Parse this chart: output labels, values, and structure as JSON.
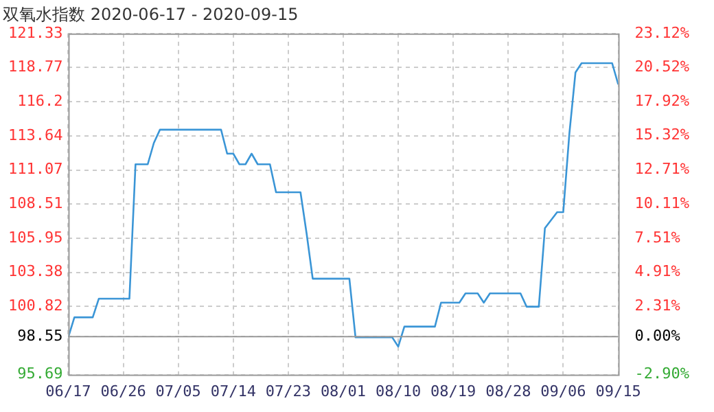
{
  "chart_data": {
    "type": "line",
    "title": "双氧水指数 2020-06-17 - 2020-09-15",
    "x": [
      "--06-17",
      "--06-18",
      "--06-21",
      "--06-22",
      "--06-27",
      "--06-28",
      "--06-30",
      "--07-01",
      "--07-02",
      "--07-12",
      "--07-13",
      "--07-14",
      "--07-15",
      "--07-16",
      "--07-17",
      "--07-18",
      "--07-20",
      "--07-21",
      "--07-25",
      "--07-26",
      "--07-27",
      "--08-02",
      "--08-03",
      "--08-09",
      "--08-10",
      "--08-11",
      "--08-16",
      "--08-17",
      "--08-20",
      "--08-21",
      "--08-23",
      "--08-24",
      "--08-25",
      "--08-30",
      "--08-31",
      "--09-02",
      "--09-03",
      "--09-05",
      "--09-06",
      "--09-07",
      "--09-08",
      "--09-09",
      "--09-14",
      "--09-15"
    ],
    "series": [
      {
        "color": "#3a95d6",
        "values": [
          98.5,
          100.0,
          100.0,
          101.4,
          101.4,
          111.5,
          111.5,
          113.1,
          114.1,
          114.1,
          112.3,
          112.3,
          111.5,
          111.5,
          112.3,
          111.5,
          111.5,
          109.4,
          109.4,
          106.3,
          102.9,
          102.9,
          98.5,
          98.5,
          97.8,
          99.3,
          99.3,
          101.1,
          101.1,
          101.8,
          101.8,
          101.1,
          101.8,
          101.8,
          100.8,
          100.8,
          106.7,
          107.9,
          107.9,
          113.8,
          118.4,
          119.1,
          119.1,
          117.5
        ]
      }
    ],
    "xlim": [
      "--06-17",
      "--09-15"
    ],
    "xticks": [
      {
        "value": "--06-17",
        "label": "06/17"
      },
      {
        "value": "--06-26",
        "label": "06/26"
      },
      {
        "value": "--07-05",
        "label": "07/05"
      },
      {
        "value": "--07-14",
        "label": "07/14"
      },
      {
        "value": "--07-23",
        "label": "07/23"
      },
      {
        "value": "--08-01",
        "label": "08/01"
      },
      {
        "value": "--08-10",
        "label": "08/10"
      },
      {
        "value": "--08-19",
        "label": "08/19"
      },
      {
        "value": "--08-28",
        "label": "08/28"
      },
      {
        "value": "--09-06",
        "label": "09/06"
      },
      {
        "value": "--09-15",
        "label": "09/15"
      }
    ],
    "ylim": [
      95.69,
      121.33
    ],
    "yticks": [
      95.69,
      98.55,
      100.82,
      103.38,
      105.95,
      108.51,
      111.07,
      113.64,
      116.2,
      118.77,
      121.33
    ],
    "y2lim": [
      -2.9,
      23.12
    ],
    "y2ticks": [
      {
        "value": -2.9,
        "label": "-2.90%"
      },
      {
        "value": 0,
        "label": "0.00%"
      },
      {
        "value": 2.31,
        "label": "2.31%"
      },
      {
        "value": 4.91,
        "label": "4.91%"
      },
      {
        "value": 7.51,
        "label": "7.51%"
      },
      {
        "value": 10.11,
        "label": "10.11%"
      },
      {
        "value": 12.71,
        "label": "12.71%"
      },
      {
        "value": 15.32,
        "label": "15.32%"
      },
      {
        "value": 17.92,
        "label": "17.92%"
      },
      {
        "value": 20.52,
        "label": "20.52%"
      },
      {
        "value": 23.12,
        "label": "23.12%"
      }
    ],
    "ref_lines": [
      {
        "axis": "y",
        "value": 98.55,
        "color": "#999999"
      }
    ],
    "grid": true,
    "legend": false,
    "marker": "none",
    "line_style": "solid"
  }
}
